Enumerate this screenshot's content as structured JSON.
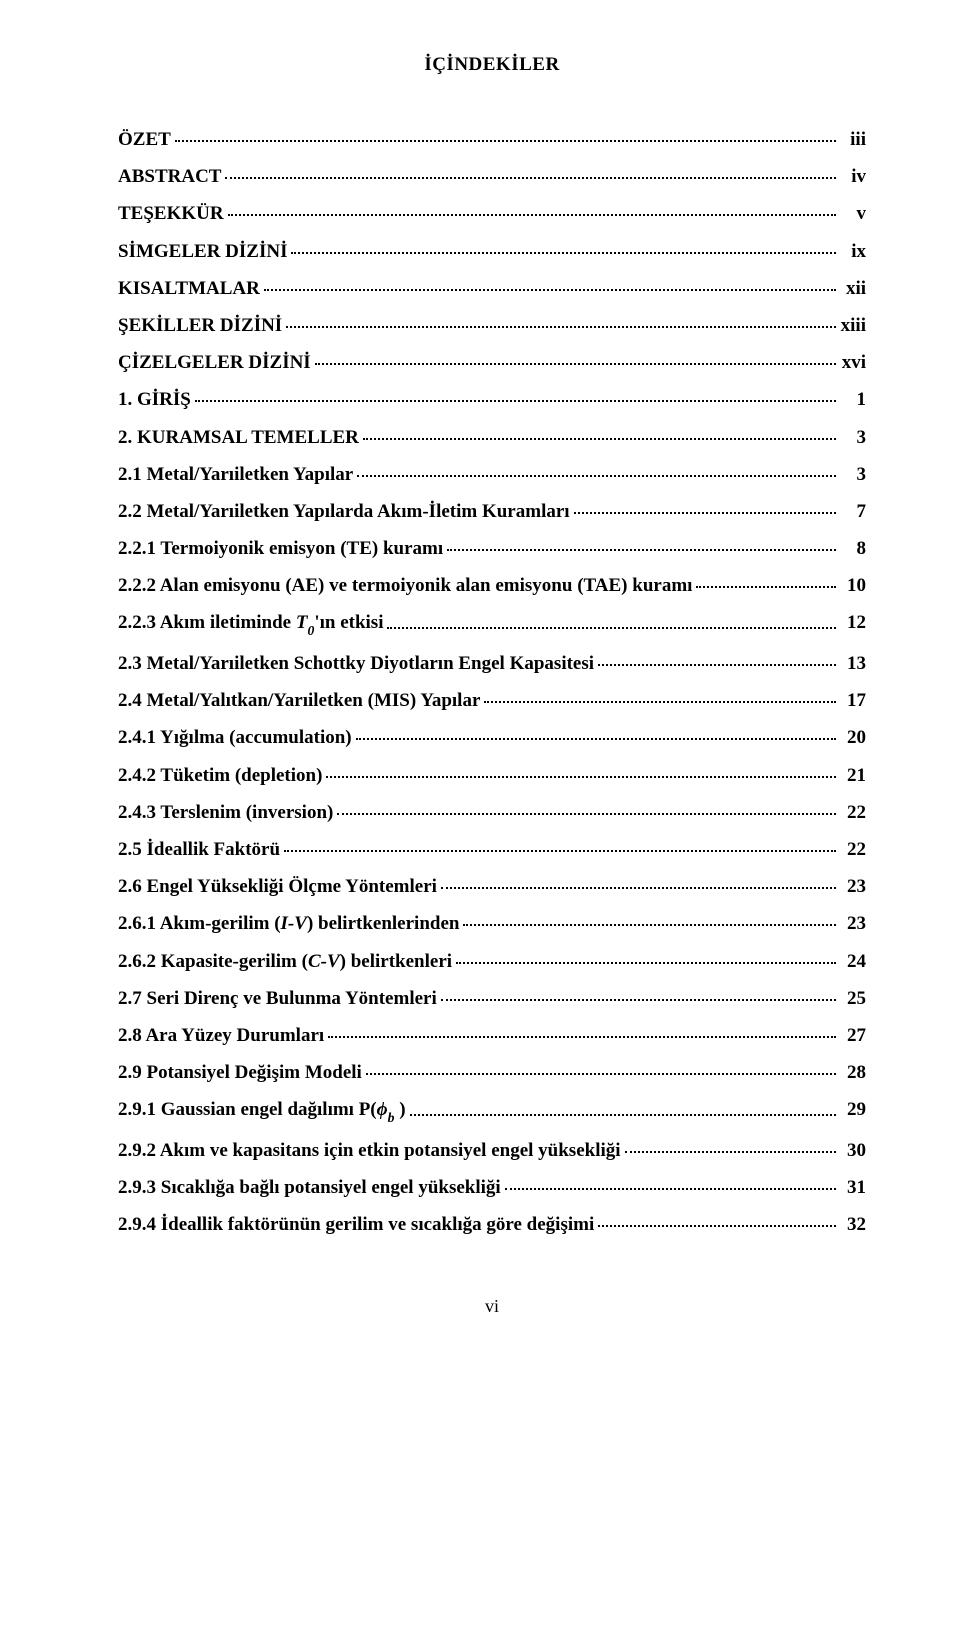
{
  "title": "İÇİNDEKİLER",
  "entries": [
    {
      "label": "ÖZET",
      "page": "iii",
      "bold": true
    },
    {
      "label": "ABSTRACT",
      "page": "iv",
      "bold": true
    },
    {
      "label": "TEŞEKKÜR",
      "page": "v",
      "bold": true
    },
    {
      "label": "SİMGELER DİZİNİ",
      "page": "ix",
      "bold": true
    },
    {
      "label": "KISALTMALAR",
      "page": "xii",
      "bold": true
    },
    {
      "label": "ŞEKİLLER DİZİNİ",
      "page": "xiii",
      "bold": true
    },
    {
      "label": "ÇİZELGELER DİZİNİ",
      "page": "xvi",
      "bold": true
    },
    {
      "label": "1. GİRİŞ",
      "page": "1",
      "bold": true
    },
    {
      "label": "2. KURAMSAL TEMELLER",
      "page": "3",
      "bold": true
    },
    {
      "label": "2.1 Metal/Yarıiletken Yapılar",
      "page": "3",
      "bold": true
    },
    {
      "label": "2.2 Metal/Yarıiletken Yapılarda Akım-İletim Kuramları",
      "page": "7",
      "bold": true
    },
    {
      "label": "2.2.1 Termoiyonik emisyon (TE) kuramı",
      "page": "8",
      "bold": true
    },
    {
      "label": "2.2.2 Alan emisyonu (AE) ve termoiyonik alan emisyonu (TAE) kuramı",
      "page": "10",
      "bold": true
    },
    {
      "label_html": "<span class='toc-label'>2.2.3 Akım iletiminde <span class='italic-var'>T<span class='sub'>0</span></span>'ın etkisi</span>",
      "page": "12",
      "bold": true
    },
    {
      "label": "2.3 Metal/Yarıiletken Schottky Diyotların Engel Kapasitesi",
      "page": "13",
      "bold": true
    },
    {
      "label": "2.4 Metal/Yalıtkan/Yarıiletken (MIS) Yapılar",
      "page": "17",
      "bold": true
    },
    {
      "label": "2.4.1 Yığılma (accumulation)",
      "page": "20",
      "bold": true
    },
    {
      "label": "2.4.2 Tüketim (depletion)",
      "page": "21",
      "bold": true
    },
    {
      "label": "2.4.3 Terslenim (inversion)",
      "page": "22",
      "bold": true
    },
    {
      "label": "2.5 İdeallik Faktörü",
      "page": "22",
      "bold": true
    },
    {
      "label": "2.6 Engel Yüksekliği Ölçme Yöntemleri",
      "page": "23",
      "bold": true
    },
    {
      "label_html": "<span class='toc-label'>2.6.1 Akım-gerilim (<span class='italic-var'>I-V</span>) belirtkenlerinden</span>",
      "page": "23",
      "bold": true
    },
    {
      "label_html": "<span class='toc-label'>2.6.2 Kapasite-gerilim (<span class='italic-var'>C-V</span>) belirtkenleri</span>",
      "page": "24",
      "bold": true
    },
    {
      "label": "2.7 Seri Direnç ve Bulunma Yöntemleri",
      "page": "25",
      "bold": true
    },
    {
      "label": "2.8 Ara Yüzey Durumları",
      "page": "27",
      "bold": true
    },
    {
      "label": "2.9 Potansiyel Değişim Modeli",
      "page": "28",
      "bold": true
    },
    {
      "label_html": "<span class='toc-label'>2.9.1 Gaussian engel dağılımı P(<span class='italic-var'>ϕ<span class='sub'>b</span></span> )</span>",
      "page": "29",
      "bold": true
    },
    {
      "label": "2.9.2 Akım ve kapasitans için etkin potansiyel engel yüksekliği",
      "page": "30",
      "bold": true
    },
    {
      "label": "2.9.3 Sıcaklığa bağlı potansiyel engel yüksekliği",
      "page": "31",
      "bold": true
    },
    {
      "label": "2.9.4 İdeallik faktörünün gerilim ve sıcaklığa göre değişimi",
      "page": "32",
      "bold": true
    }
  ],
  "footer_page": "vi",
  "colors": {
    "text": "#000000",
    "background": "#ffffff",
    "dot": "#000000"
  },
  "typography": {
    "body_fontsize": 19,
    "title_fontsize": 19,
    "font_family": "Times New Roman"
  }
}
